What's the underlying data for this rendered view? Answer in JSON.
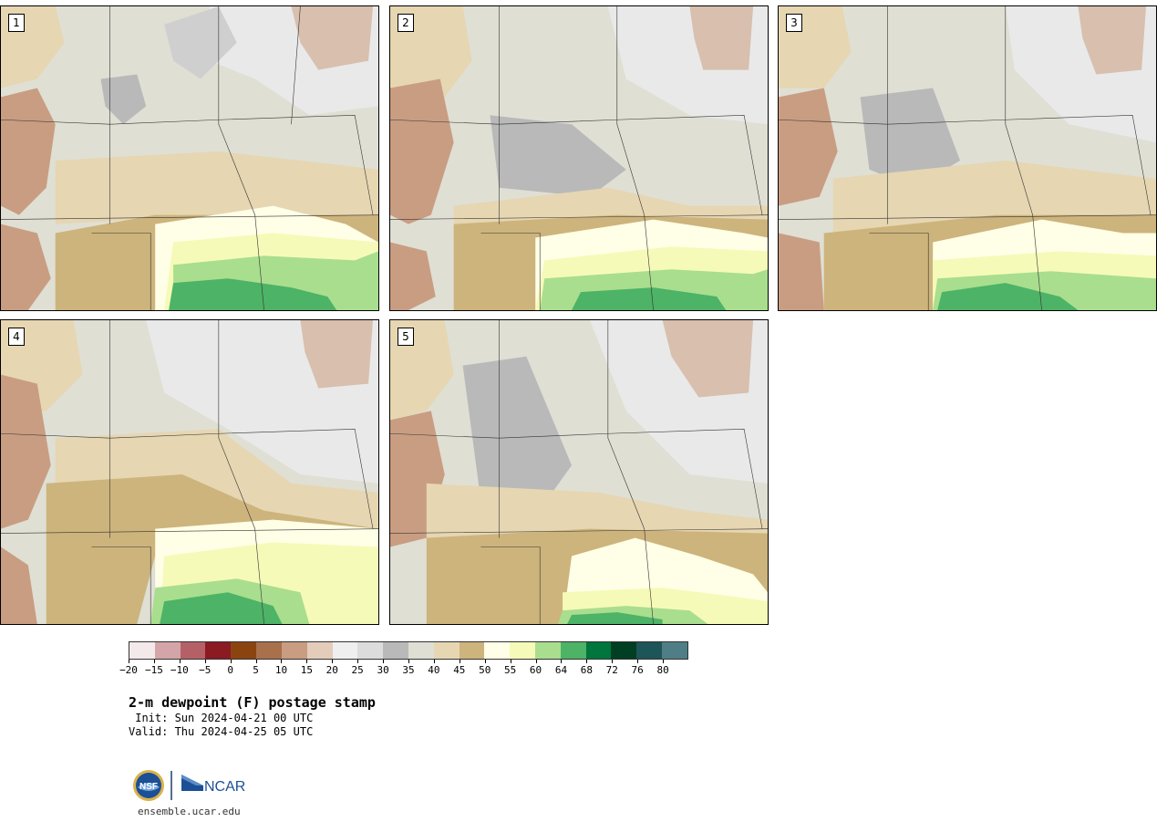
{
  "panels": [
    {
      "label": "1"
    },
    {
      "label": "2"
    },
    {
      "label": "3"
    },
    {
      "label": "4"
    },
    {
      "label": "5"
    }
  ],
  "colorbar": {
    "colors": [
      "#f3e9ea",
      "#d4a5a8",
      "#b56066",
      "#8b1a22",
      "#8b4410",
      "#a9704c",
      "#c99d82",
      "#e4ccbb",
      "#efefef",
      "#dcdcdc",
      "#b9b9b9",
      "#dfdfd4",
      "#e6d6b2",
      "#cdb47c",
      "#fffee6",
      "#f6fab8",
      "#a9de8e",
      "#4db366",
      "#00753c",
      "#003f23",
      "#1d5559",
      "#4f7e86"
    ],
    "tick_labels": [
      "−20",
      "−15",
      "−10",
      "−5",
      "0",
      "5",
      "10",
      "15",
      "20",
      "25",
      "30",
      "35",
      "40",
      "45",
      "50",
      "55",
      "60",
      "64",
      "68",
      "72",
      "76",
      "80"
    ]
  },
  "title": "2-m dewpoint (F) postage stamp",
  "init": " Init: Sun 2024-04-21 00 UTC",
  "valid": "Valid: Thu 2024-04-25 05 UTC",
  "logos": {
    "nsf": "NSF",
    "ncar": "NCAR"
  },
  "site": "ensemble.ucar.edu"
}
